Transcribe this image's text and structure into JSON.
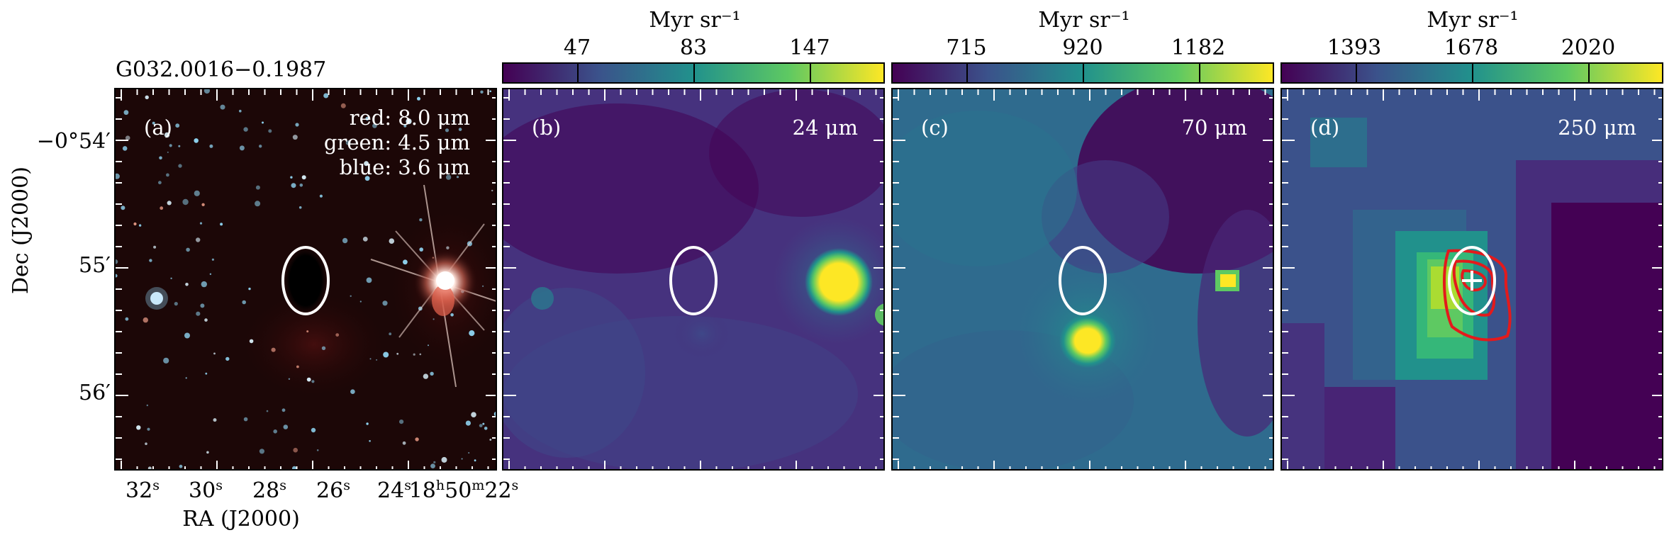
{
  "source_name": "G032.0016−0.1987",
  "axes": {
    "xlabel": "RA (J2000)",
    "ylabel": "Dec (J2000)",
    "x_ticks": [
      {
        "main": "32",
        "sup": "s"
      },
      {
        "main": "30",
        "sup": "s"
      },
      {
        "main": "28",
        "sup": "s"
      },
      {
        "main": "26",
        "sup": "s"
      },
      {
        "main": "24",
        "sup": "s"
      },
      {
        "main": "18",
        "sup": "h",
        "main2": "50",
        "sup2": "m",
        "main3": "22",
        "sup3": "s"
      }
    ],
    "y_ticks": [
      "−0°54′",
      "55′",
      "56′"
    ]
  },
  "panels": [
    {
      "id": "a",
      "label": "(a)",
      "rgb": {
        "red": "red: 8.0 μm",
        "green": "green: 4.5 μm",
        "blue": "blue: 3.6 μm"
      }
    },
    {
      "id": "b",
      "label": "(b)",
      "wavelength": "24 μm",
      "colorbar": {
        "title": "Myr sr⁻¹",
        "ticks": [
          "47",
          "83",
          "147"
        ]
      }
    },
    {
      "id": "c",
      "label": "(c)",
      "wavelength": "70 μm",
      "colorbar": {
        "title": "Myr sr⁻¹",
        "ticks": [
          "715",
          "920",
          "1182"
        ]
      }
    },
    {
      "id": "d",
      "label": "(d)",
      "wavelength": "250 μm",
      "colorbar": {
        "title": "Myr sr⁻¹",
        "ticks": [
          "1393",
          "1678",
          "2020"
        ]
      }
    }
  ],
  "colors": {
    "colormap": [
      "#440154",
      "#3b528b",
      "#21918c",
      "#5ec962",
      "#fde725"
    ],
    "ellipse": "#ffffff",
    "contour": "#e31a1c"
  }
}
